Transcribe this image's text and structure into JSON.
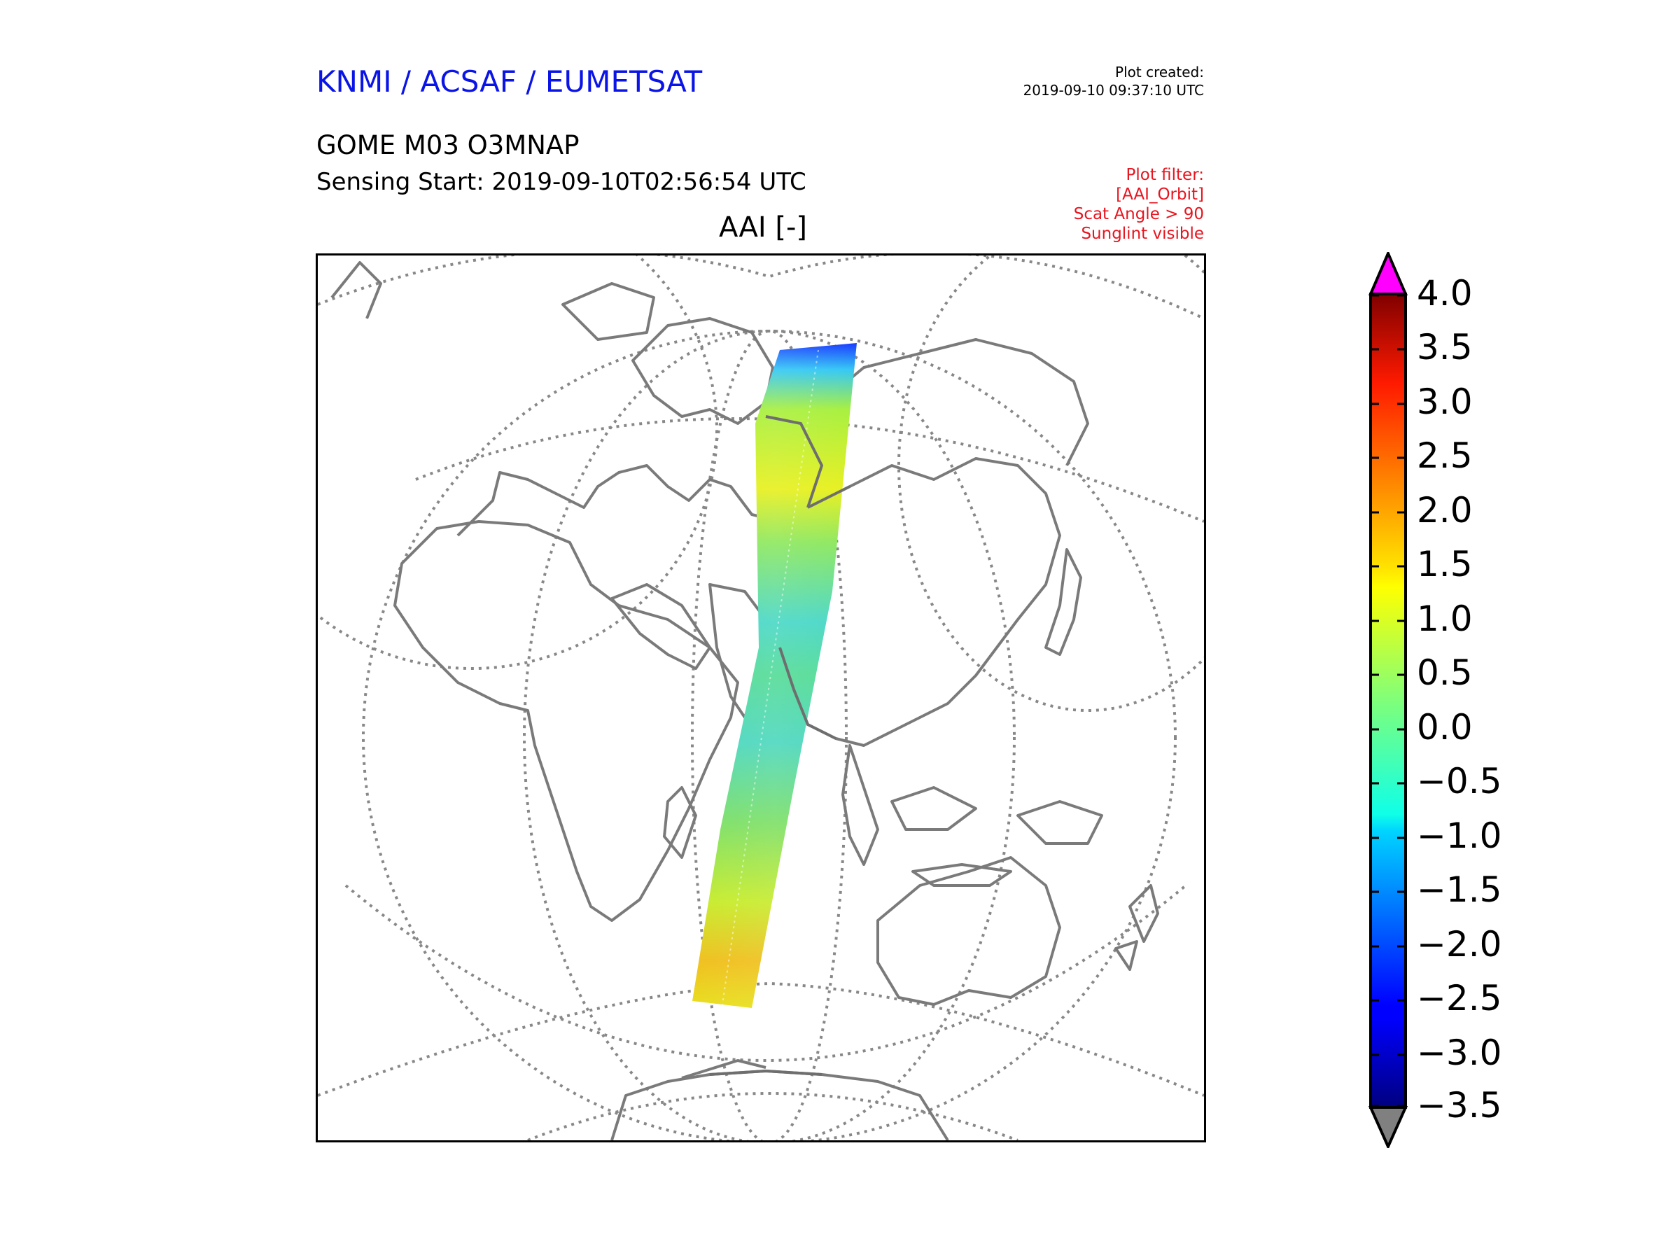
{
  "header": {
    "source": "KNMI / ACSAF / EUMETSAT",
    "product": "GOME M03 O3MNAP",
    "sensing_start": "Sensing Start: 2019-09-10T02:56:54 UTC",
    "plot_created_label": "Plot created:",
    "plot_created_time": "2019-09-10 09:37:10 UTC"
  },
  "filter": {
    "label": "Plot filter:",
    "lines": [
      "[AAI_Orbit]",
      "Scat Angle > 90",
      "Sunglint visible"
    ]
  },
  "map": {
    "title": "AAI [-]",
    "projection": "near-sided perspective centred on Indian Ocean / Asia",
    "swath_from": "Greenland (north)",
    "swath_to": "Antarctica (south)"
  },
  "colorbar": {
    "ticks": [
      "4.0",
      "3.5",
      "3.0",
      "2.5",
      "2.0",
      "1.5",
      "1.0",
      "0.5",
      "0.0",
      "−0.5",
      "−1.0",
      "−1.5",
      "−2.0",
      "−2.5",
      "−3.0",
      "−3.5"
    ],
    "colormap": "jet",
    "over_color": "#ff00ff",
    "under_color": "#808080"
  },
  "chart_data": {
    "type": "heatmap",
    "title": "AAI [-]",
    "vmin": -3.5,
    "vmax": 4.0,
    "colorbar_ticks": [
      4.0,
      3.5,
      3.0,
      2.5,
      2.0,
      1.5,
      1.0,
      0.5,
      0.0,
      -0.5,
      -1.0,
      -1.5,
      -2.0,
      -2.5,
      -3.0,
      -3.5
    ],
    "extend": "both",
    "colormap": "jet"
  }
}
